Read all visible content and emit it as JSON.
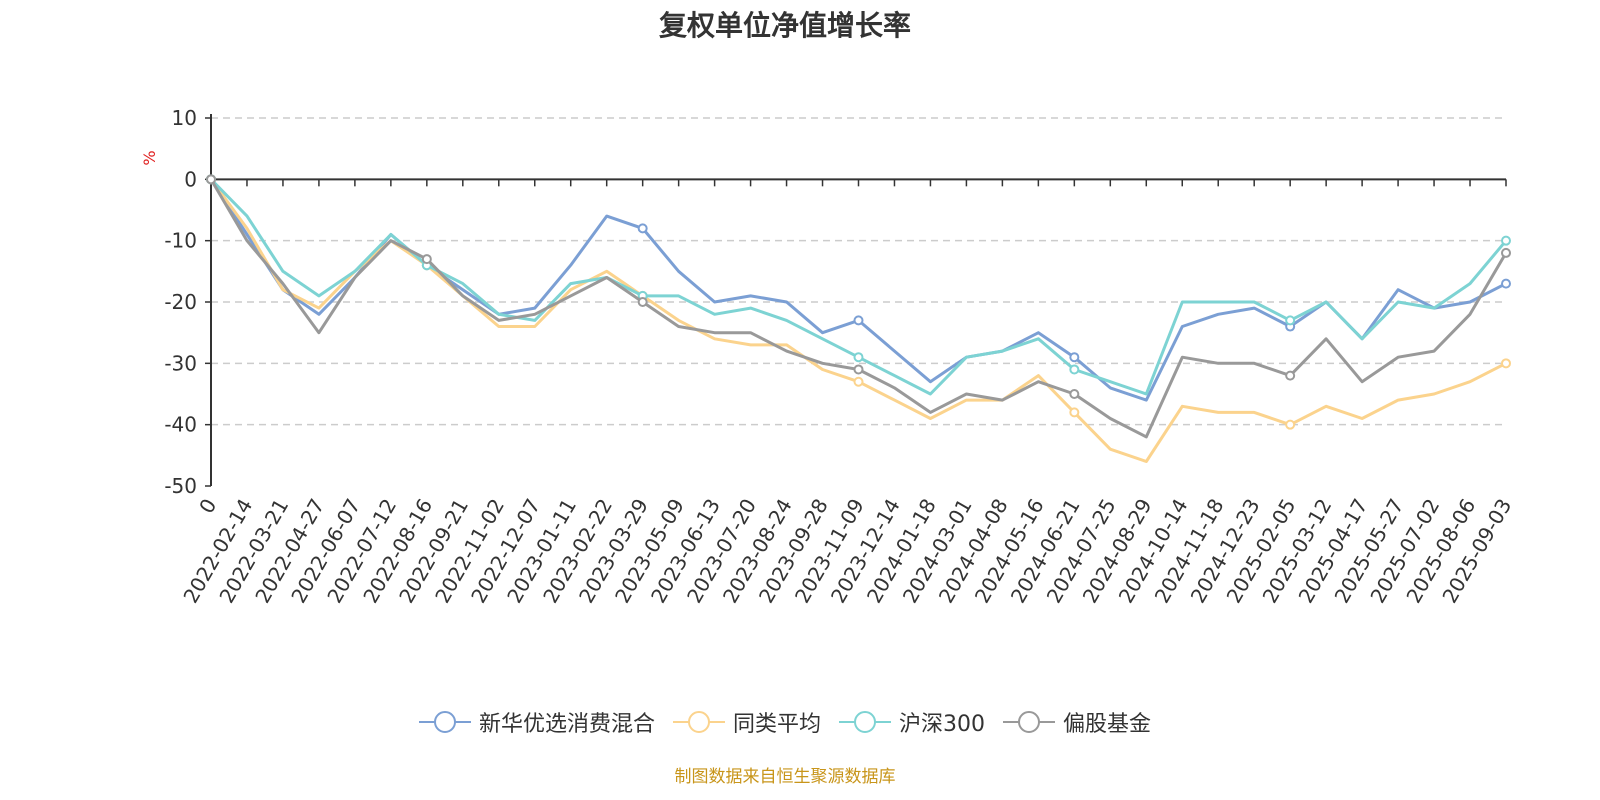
{
  "chart_data": {
    "type": "line",
    "title": "复权单位净值增长率",
    "ylabel": "%",
    "ylim": [
      -50,
      10
    ],
    "yticks": [
      10,
      0,
      -10,
      -20,
      -30,
      -40,
      -50
    ],
    "grid": true,
    "legend_position": "bottom",
    "x": [
      "0",
      "2022-02-14",
      "2022-03-21",
      "2022-04-27",
      "2022-06-07",
      "2022-07-12",
      "2022-08-16",
      "2022-09-21",
      "2022-11-02",
      "2022-12-07",
      "2023-01-11",
      "2023-02-22",
      "2023-03-29",
      "2023-05-09",
      "2023-06-13",
      "2023-07-20",
      "2023-08-24",
      "2023-09-28",
      "2023-11-09",
      "2023-12-14",
      "2024-01-18",
      "2024-03-01",
      "2024-04-08",
      "2024-05-16",
      "2024-06-21",
      "2024-07-25",
      "2024-08-29",
      "2024-10-14",
      "2024-11-18",
      "2024-12-23",
      "2025-02-05",
      "2025-03-12",
      "2025-04-17",
      "2025-05-27",
      "2025-07-02",
      "2025-08-06",
      "2025-09-03"
    ],
    "series": [
      {
        "name": "新华优选消费混合",
        "color": "#7b9fd4",
        "values": [
          0,
          -9,
          -18,
          -22,
          -16,
          -9,
          -14,
          -18,
          -22,
          -21,
          -14,
          -6,
          -8,
          -15,
          -20,
          -19,
          -20,
          -25,
          -23,
          -28,
          -33,
          -29,
          -28,
          -25,
          -29,
          -34,
          -36,
          -24,
          -22,
          -21,
          -24,
          -20,
          -26,
          -18,
          -21,
          -20,
          -17
        ]
      },
      {
        "name": "同类平均",
        "color": "#fbd38d",
        "values": [
          0,
          -8,
          -18,
          -21,
          -15,
          -10,
          -14,
          -19,
          -24,
          -24,
          -18,
          -15,
          -19,
          -23,
          -26,
          -27,
          -27,
          -31,
          -33,
          -36,
          -39,
          -36,
          -36,
          -32,
          -38,
          -44,
          -46,
          -37,
          -38,
          -38,
          -40,
          -37,
          -39,
          -36,
          -35,
          -33,
          -30
        ]
      },
      {
        "name": "沪深300",
        "color": "#7dd3d3",
        "values": [
          0,
          -6,
          -15,
          -19,
          -15,
          -9,
          -14,
          -17,
          -22,
          -23,
          -17,
          -16,
          -19,
          -19,
          -22,
          -21,
          -23,
          -26,
          -29,
          -32,
          -35,
          -29,
          -28,
          -26,
          -31,
          -33,
          -35,
          -20,
          -20,
          -20,
          -23,
          -20,
          -26,
          -20,
          -21,
          -17,
          -10
        ]
      },
      {
        "name": "偏股基金",
        "color": "#999999",
        "values": [
          0,
          -10,
          -17,
          -25,
          -16,
          -10,
          -13,
          -19,
          -23,
          -22,
          -19,
          -16,
          -20,
          -24,
          -25,
          -25,
          -28,
          -30,
          -31,
          -34,
          -38,
          -35,
          -36,
          -33,
          -35,
          -39,
          -42,
          -29,
          -30,
          -30,
          -32,
          -26,
          -33,
          -29,
          -28,
          -22,
          -12
        ]
      }
    ]
  },
  "footer": {
    "source_note": "制图数据来自恒生聚源数据库"
  }
}
